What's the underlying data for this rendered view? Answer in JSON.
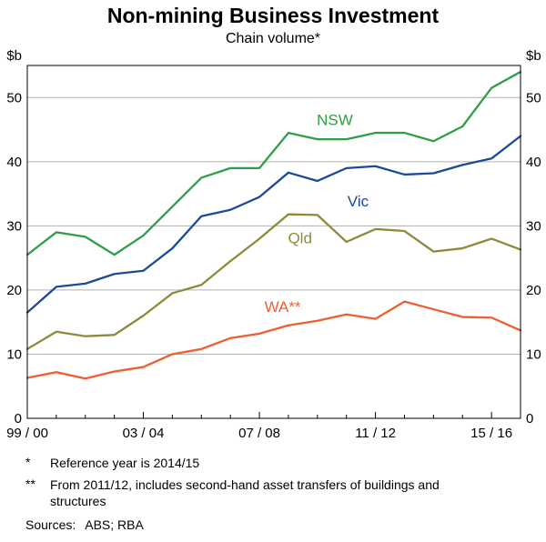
{
  "header": {
    "title": "Non-mining Business Investment",
    "subtitle": "Chain volume*"
  },
  "chart_data": {
    "type": "line",
    "title": "Non-mining Business Investment",
    "subtitle": "Chain volume*",
    "y_unit": "$b",
    "ylim": [
      0,
      55
    ],
    "y_ticks": [
      0,
      10,
      20,
      30,
      40,
      50
    ],
    "grid": "horizontal",
    "x_range": [
      0,
      17
    ],
    "x_years": [
      "1999/00",
      "2000/01",
      "2001/02",
      "2002/03",
      "2003/04",
      "2004/05",
      "2005/06",
      "2006/07",
      "2007/08",
      "2008/09",
      "2009/10",
      "2010/11",
      "2011/12",
      "2012/13",
      "2013/14",
      "2014/15",
      "2015/16",
      "2016/17"
    ],
    "x_tick_labels": [
      "99 / 00",
      "03 / 04",
      "07 / 08",
      "11 / 12",
      "15 / 16"
    ],
    "x_tick_positions": [
      0,
      4,
      8,
      12,
      16
    ],
    "legend_position": "inline-labels",
    "series": [
      {
        "name": "NSW",
        "color": "#2f9e49",
        "values": [
          25.5,
          29,
          28.3,
          25.5,
          28.5,
          33,
          37.5,
          39,
          39,
          44.5,
          43.5,
          43.5,
          44.5,
          44.5,
          43.2,
          45.5,
          51.5,
          54
        ]
      },
      {
        "name": "Vic",
        "color": "#1b4a96",
        "values": [
          16.5,
          20.5,
          21,
          22.5,
          23,
          26.5,
          31.5,
          32.5,
          34.5,
          38.3,
          37,
          39,
          39.3,
          38,
          38.2,
          39.5,
          40.5,
          44
        ]
      },
      {
        "name": "Qld",
        "color": "#8d8b38",
        "values": [
          10.8,
          13.5,
          12.8,
          13,
          16,
          19.5,
          20.8,
          24.5,
          28,
          31.8,
          31.7,
          27.5,
          29.5,
          29.2,
          26,
          26.5,
          28,
          26.3
        ]
      },
      {
        "name": "WA",
        "color": "#ef5e2e",
        "values": [
          6.3,
          7.2,
          6.2,
          7.3,
          8,
          10,
          10.8,
          12.5,
          13.2,
          14.5,
          15.2,
          16.2,
          15.5,
          18.2,
          17,
          15.8,
          15.7,
          13.7
        ]
      }
    ],
    "annotations": [
      {
        "text": "NSW",
        "x": 10.6,
        "y": 45.7,
        "color": "#2f9e49"
      },
      {
        "text": "Vic",
        "x": 11.4,
        "y": 33.0,
        "color": "#1b4a96"
      },
      {
        "text": "Qld",
        "x": 9.4,
        "y": 27.3,
        "color": "#8d8b38"
      },
      {
        "text": "WA**",
        "x": 8.8,
        "y": 16.6,
        "color": "#ef5e2e"
      }
    ]
  },
  "footnotes": [
    {
      "marker": "*",
      "text": "Reference year is 2014/15"
    },
    {
      "marker": "**",
      "text": "From 2011/12, includes second-hand asset transfers of buildings and structures"
    }
  ],
  "sources": {
    "label": "Sources:",
    "text": "ABS; RBA"
  }
}
